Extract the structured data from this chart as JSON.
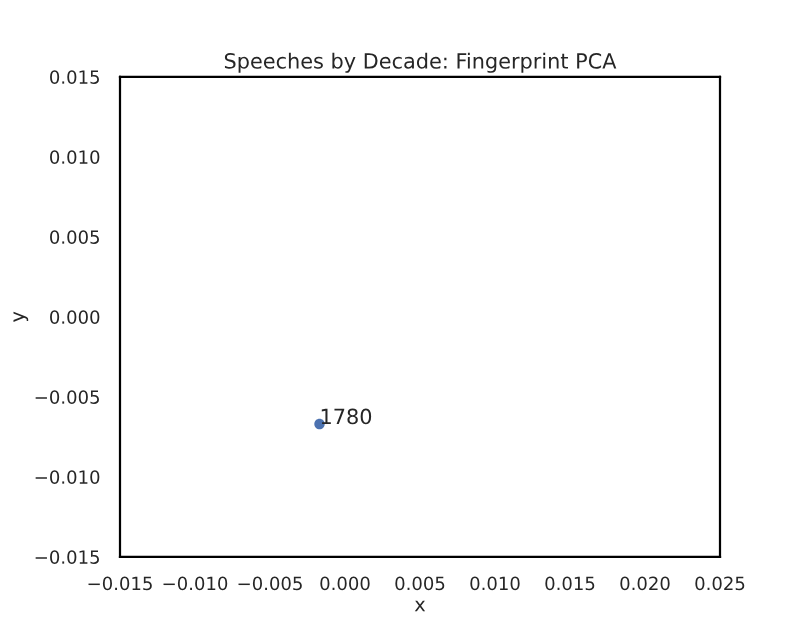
{
  "chart_data": {
    "type": "scatter",
    "title": "Speeches by Decade: Fingerprint PCA",
    "xlabel": "x",
    "ylabel": "y",
    "x": [
      -0.0017
    ],
    "series": [
      {
        "color": "#4c72b0",
        "values": [
          -0.0067
        ]
      }
    ],
    "annotations": [
      {
        "text": "1780",
        "x": -0.0017,
        "y": -0.0067
      }
    ],
    "marker": "circle",
    "grid": false,
    "legend": false,
    "xlim": [
      -0.015,
      0.025
    ],
    "ylim": [
      -0.015,
      0.015
    ],
    "xticks": [
      {
        "value": -0.015,
        "label": "−0.015"
      },
      {
        "value": -0.01,
        "label": "−0.010"
      },
      {
        "value": -0.005,
        "label": "−0.005"
      },
      {
        "value": 0,
        "label": "0.000"
      },
      {
        "value": 0.005,
        "label": "0.005"
      },
      {
        "value": 0.01,
        "label": "0.010"
      },
      {
        "value": 0.015,
        "label": "0.015"
      },
      {
        "value": 0.02,
        "label": "0.020"
      },
      {
        "value": 0.025,
        "label": "0.025"
      }
    ],
    "yticks": [
      {
        "value": -0.015,
        "label": "−0.015"
      },
      {
        "value": -0.01,
        "label": "−0.010"
      },
      {
        "value": -0.005,
        "label": "−0.005"
      },
      {
        "value": 0,
        "label": "0.000"
      },
      {
        "value": 0.005,
        "label": "0.005"
      },
      {
        "value": 0.01,
        "label": "0.010"
      },
      {
        "value": 0.015,
        "label": "0.015"
      }
    ]
  }
}
